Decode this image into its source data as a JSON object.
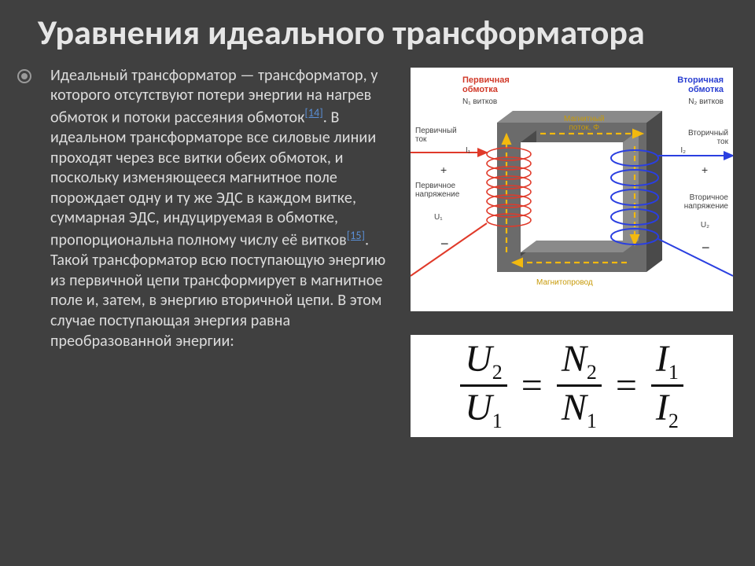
{
  "title": "Уравнения идеального трансформатора",
  "body": {
    "part1": "Идеальный трансформатор — трансформатор, у которого отсутствуют потери энергии на нагрев обмоток и потоки рассеяния обмоток",
    "ref1": "[14]",
    "part2": ". В идеальном трансформаторе все силовые линии проходят через все витки обеих обмоток, и поскольку изменяющееся магнитное поле порождает одну и ту же ЭДС в каждом витке, суммарная ЭДС, индуцируемая в обмотке, пропорциональна полному числу её витков",
    "ref2": "[15]",
    "part3": ". Такой трансформатор всю поступающую энергию из первичной цепи трансформирует в магнитное поле и, затем, в энергию вторичной цепи. В этом случае поступающая энергия равна преобразованной энергии:"
  },
  "figure": {
    "labels": {
      "primary_winding": "Первичная\nобмотка",
      "secondary_winding": "Вторичная\nобмотка",
      "n1": "N₁ витков",
      "n2": "N₂ витков",
      "primary_current": "Первичный\nток",
      "secondary_current": "Вторичный\nток",
      "primary_voltage": "Первичное\nнапряжение",
      "secondary_voltage": "Вторичное\nнапряжение",
      "i1": "I₁",
      "i2": "I₂",
      "u1": "U₁",
      "u2": "U₂",
      "flux": "Магнитный\nпоток, Φ",
      "core": "Магнитопровод"
    },
    "colors": {
      "bg": "#ffffff",
      "core_top": "#8a8a8a",
      "core_front": "#6b6b6b",
      "core_shadow": "#4a4a4a",
      "primary": "#e03a2a",
      "secondary": "#2a3fe0",
      "flux_arrow": "#f2b90f"
    }
  },
  "equation": {
    "terms": [
      {
        "num_sym": "U",
        "num_sub": "2",
        "den_sym": "U",
        "den_sub": "1"
      },
      {
        "num_sym": "N",
        "num_sub": "2",
        "den_sym": "N",
        "den_sub": "1"
      },
      {
        "num_sym": "I",
        "num_sub": "1",
        "den_sym": "I",
        "den_sub": "2"
      }
    ],
    "eq": "="
  },
  "style": {
    "slide_bg": "#404040",
    "title_color": "#e6e6e6",
    "text_color": "#dcdcdc",
    "link_color": "#5a8fd6",
    "title_fontsize": 44,
    "body_fontsize": 20,
    "eq_fontsize": 48,
    "eq_bg": "#ffffff",
    "eq_color": "#111111"
  }
}
